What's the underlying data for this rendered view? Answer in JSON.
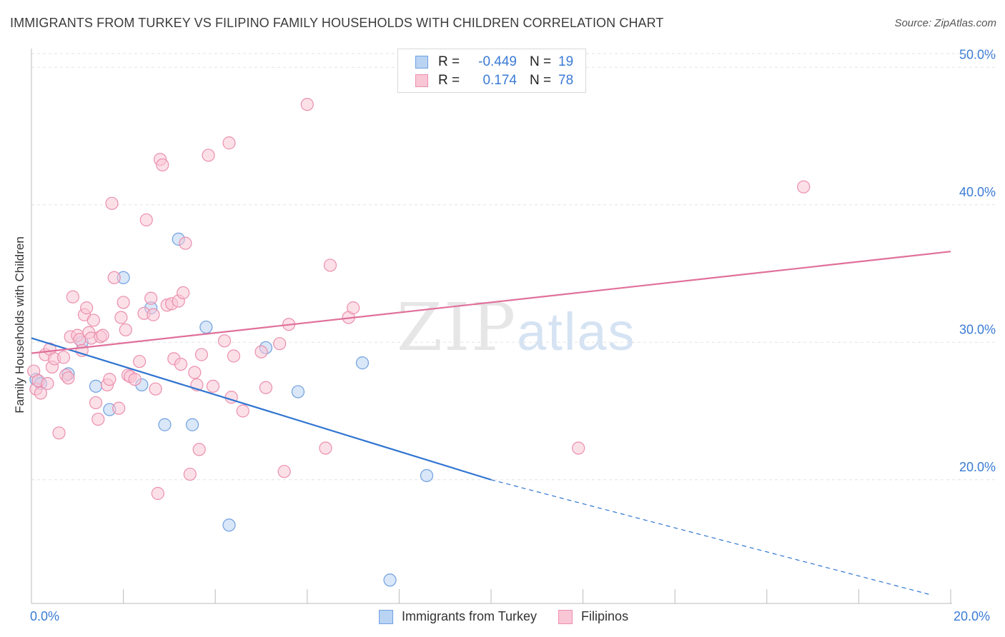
{
  "title": "IMMIGRANTS FROM TURKEY VS FILIPINO FAMILY HOUSEHOLDS WITH CHILDREN CORRELATION CHART",
  "source": "Source: ZipAtlas.com",
  "watermark": {
    "zip": "ZIP",
    "atlas": "atlas"
  },
  "stats": [
    {
      "r_label": "R =",
      "r_value": "-0.449",
      "n_label": "N =",
      "n_value": "19",
      "color": "#a8c8f0",
      "border": "#6fa0e0"
    },
    {
      "r_label": "R =",
      "r_value": "0.174",
      "n_label": "N =",
      "n_value": "78",
      "color": "#f9c6d6",
      "border": "#eb8fae"
    }
  ],
  "legend": [
    {
      "label": "Immigrants from Turkey",
      "color": "#b9d3f3",
      "border": "#6fa0e0"
    },
    {
      "label": "Filipinos",
      "color": "#f9c6d6",
      "border": "#eb8fae"
    }
  ],
  "chart_data": {
    "type": "scatter",
    "title": "IMMIGRANTS FROM TURKEY VS FILIPINO FAMILY HOUSEHOLDS WITH CHILDREN CORRELATION CHART",
    "xlabel": "",
    "ylabel": "Family Households with Children",
    "xlim": [
      0,
      20
    ],
    "ylim": [
      11,
      51
    ],
    "x_tick_labels": [
      "0.0%",
      "20.0%"
    ],
    "y_ticks": [
      20,
      30,
      40,
      50
    ],
    "y_tick_labels": [
      "20.0%",
      "30.0%",
      "40.0%",
      "50.0%"
    ],
    "grid": true,
    "legend_position": "bottom-center",
    "series": [
      {
        "name": "Immigrants from Turkey",
        "color": "#b9d3f3",
        "stroke": "#6fa0e0",
        "line_color": "#2f74d0",
        "trend": {
          "x0": 0.0,
          "y0": 30.3,
          "x1": 10.0,
          "y1": 20.0,
          "dash_to_x": 19.6,
          "dash_to_y": 11.6
        },
        "points": [
          [
            0.1,
            27.3
          ],
          [
            0.8,
            27.7
          ],
          [
            0.2,
            27.0
          ],
          [
            1.1,
            30.0
          ],
          [
            1.4,
            26.8
          ],
          [
            1.7,
            25.1
          ],
          [
            2.0,
            34.7
          ],
          [
            2.4,
            26.9
          ],
          [
            2.6,
            32.5
          ],
          [
            2.9,
            24.0
          ],
          [
            3.2,
            37.5
          ],
          [
            3.5,
            24.0
          ],
          [
            3.8,
            31.1
          ],
          [
            4.3,
            16.7
          ],
          [
            5.1,
            29.6
          ],
          [
            5.8,
            26.4
          ],
          [
            7.2,
            28.5
          ],
          [
            7.8,
            12.7
          ],
          [
            8.6,
            20.3
          ]
        ]
      },
      {
        "name": "Filipinos",
        "color": "#f9c6d6",
        "stroke": "#eb8fae",
        "line_color": "#e0709a",
        "trend": {
          "x0": 0.0,
          "y0": 29.2,
          "x1": 20.0,
          "y1": 36.6
        },
        "points": [
          [
            0.05,
            27.9
          ],
          [
            0.1,
            26.6
          ],
          [
            0.2,
            26.3
          ],
          [
            0.15,
            27.2
          ],
          [
            0.3,
            29.1
          ],
          [
            0.35,
            27.0
          ],
          [
            0.4,
            29.5
          ],
          [
            0.45,
            28.2
          ],
          [
            0.5,
            28.8
          ],
          [
            0.6,
            23.4
          ],
          [
            0.7,
            28.9
          ],
          [
            0.75,
            27.6
          ],
          [
            0.8,
            27.4
          ],
          [
            0.85,
            30.4
          ],
          [
            0.9,
            33.3
          ],
          [
            1.0,
            30.5
          ],
          [
            1.05,
            30.2
          ],
          [
            1.1,
            29.4
          ],
          [
            1.15,
            32.0
          ],
          [
            1.2,
            32.5
          ],
          [
            1.25,
            30.7
          ],
          [
            1.3,
            30.3
          ],
          [
            1.35,
            31.6
          ],
          [
            1.4,
            25.6
          ],
          [
            1.45,
            24.4
          ],
          [
            1.5,
            30.4
          ],
          [
            1.55,
            30.5
          ],
          [
            1.65,
            26.9
          ],
          [
            1.7,
            27.3
          ],
          [
            1.75,
            40.1
          ],
          [
            1.8,
            34.7
          ],
          [
            1.9,
            25.2
          ],
          [
            1.95,
            31.8
          ],
          [
            2.0,
            32.9
          ],
          [
            2.05,
            30.9
          ],
          [
            2.1,
            27.6
          ],
          [
            2.15,
            27.5
          ],
          [
            2.25,
            27.3
          ],
          [
            2.35,
            28.6
          ],
          [
            2.45,
            32.1
          ],
          [
            2.5,
            38.9
          ],
          [
            2.6,
            33.2
          ],
          [
            2.65,
            32.0
          ],
          [
            2.7,
            26.6
          ],
          [
            2.75,
            19.0
          ],
          [
            2.8,
            43.3
          ],
          [
            2.85,
            42.9
          ],
          [
            2.95,
            32.7
          ],
          [
            3.05,
            32.8
          ],
          [
            3.1,
            28.8
          ],
          [
            3.2,
            33.0
          ],
          [
            3.25,
            28.4
          ],
          [
            3.3,
            33.6
          ],
          [
            3.35,
            37.2
          ],
          [
            3.45,
            20.4
          ],
          [
            3.55,
            27.8
          ],
          [
            3.6,
            26.9
          ],
          [
            3.65,
            22.2
          ],
          [
            3.7,
            29.1
          ],
          [
            3.85,
            43.6
          ],
          [
            3.95,
            26.8
          ],
          [
            4.2,
            30.1
          ],
          [
            4.3,
            44.5
          ],
          [
            4.35,
            26.0
          ],
          [
            4.4,
            29.0
          ],
          [
            4.6,
            25.0
          ],
          [
            5.0,
            29.3
          ],
          [
            5.1,
            26.7
          ],
          [
            5.4,
            29.9
          ],
          [
            5.5,
            20.6
          ],
          [
            5.6,
            31.3
          ],
          [
            6.0,
            47.3
          ],
          [
            6.4,
            22.3
          ],
          [
            6.5,
            35.6
          ],
          [
            6.9,
            31.8
          ],
          [
            7.0,
            32.5
          ],
          [
            11.9,
            22.3
          ],
          [
            16.8,
            41.3
          ]
        ]
      }
    ]
  }
}
